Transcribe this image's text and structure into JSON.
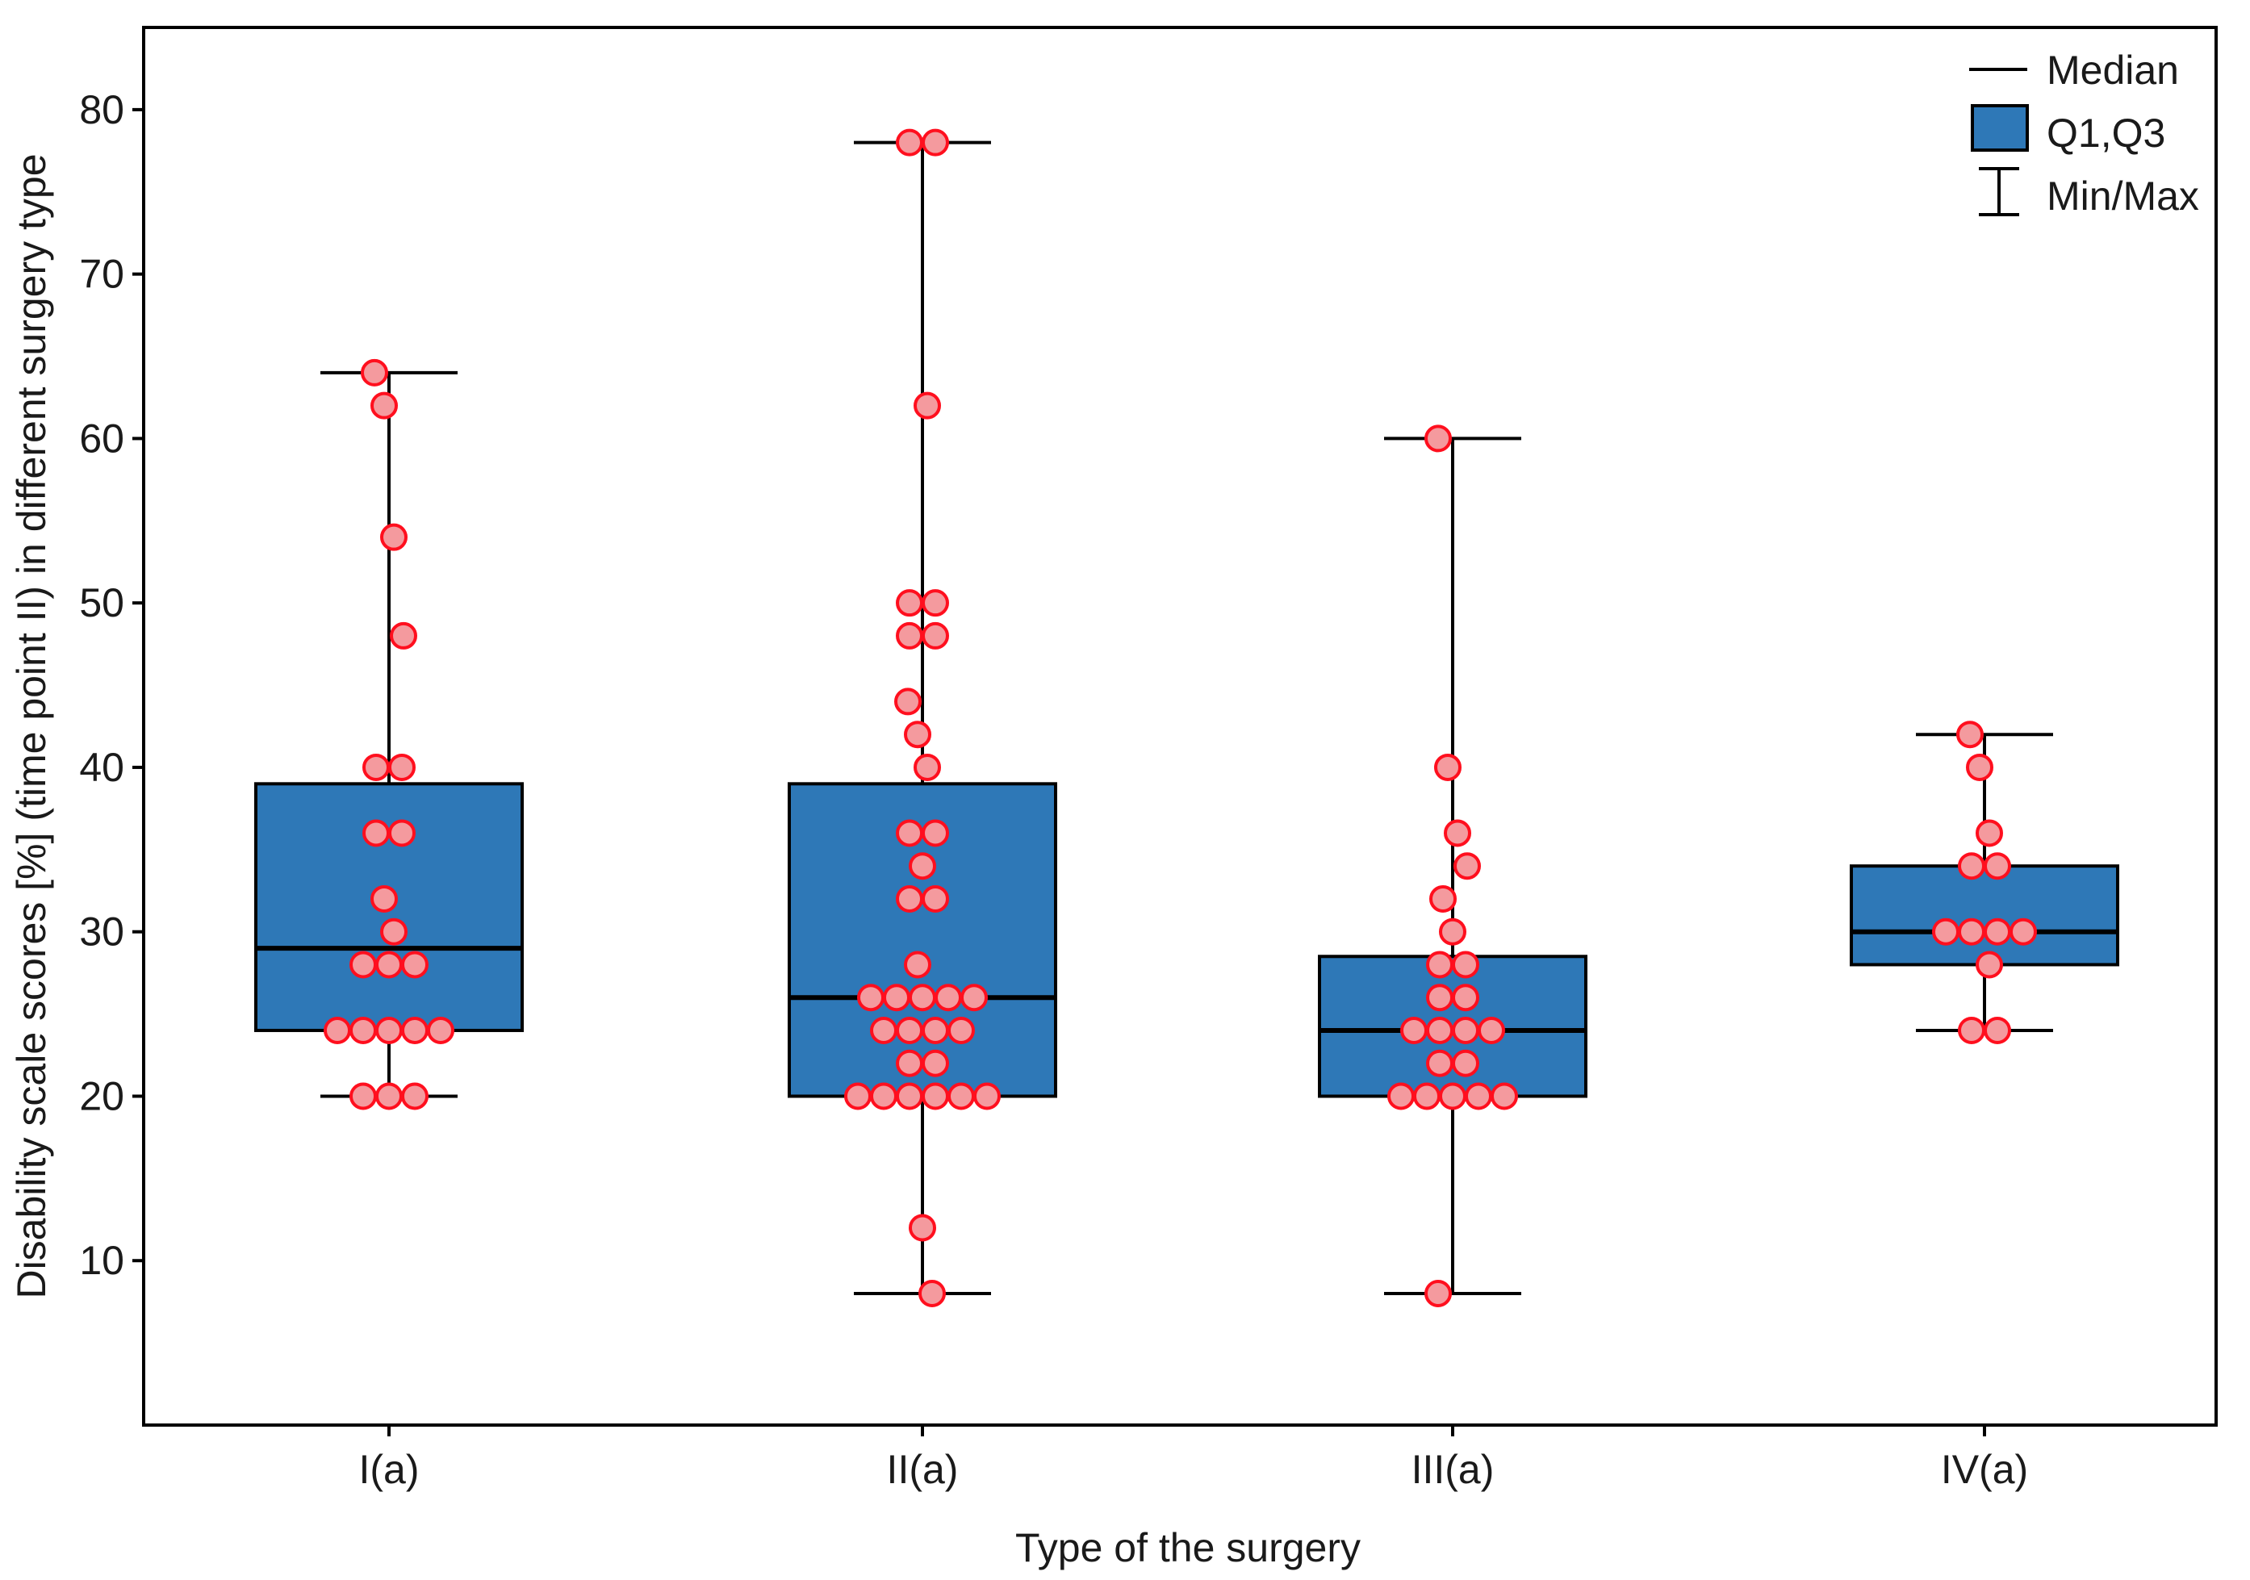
{
  "chart_data": {
    "type": "box",
    "xlabel": "Type of the surgery",
    "ylabel": "Disability scale scores [%] (time point II) in different surgery type",
    "ylim": [
      0,
      85
    ],
    "yticks": [
      10,
      20,
      30,
      40,
      50,
      60,
      70,
      80
    ],
    "categories": [
      "I(a)",
      "II(a)",
      "III(a)",
      "IV(a)"
    ],
    "legend": {
      "position": "top-right",
      "items": [
        "Median",
        "Q1,Q3",
        "Min/Max"
      ]
    },
    "colors": {
      "box_fill": "#2e78b7",
      "point_fill": "#f49a9e",
      "point_stroke": "#ff0f1e",
      "line": "#000000"
    },
    "boxes": [
      {
        "category": "I(a)",
        "min": 20,
        "q1": 24,
        "median": 29,
        "q3": 39,
        "max": 64
      },
      {
        "category": "II(a)",
        "min": 8,
        "q1": 20,
        "median": 26,
        "q3": 39,
        "max": 78
      },
      {
        "category": "III(a)",
        "min": 8,
        "q1": 20,
        "median": 24,
        "q3": 28.5,
        "max": 60
      },
      {
        "category": "IV(a)",
        "min": 24,
        "q1": 28,
        "median": 30,
        "q3": 34,
        "max": 42
      }
    ],
    "points": [
      {
        "category": "I(a)",
        "values": [
          64,
          62,
          54,
          48,
          40,
          40,
          36,
          36,
          32,
          30,
          28,
          28,
          28,
          24,
          24,
          24,
          24,
          24,
          20,
          20,
          20
        ]
      },
      {
        "category": "II(a)",
        "values": [
          78,
          78,
          62,
          50,
          50,
          48,
          48,
          44,
          42,
          40,
          36,
          36,
          34,
          32,
          32,
          28,
          26,
          26,
          26,
          26,
          26,
          24,
          24,
          24,
          24,
          22,
          22,
          20,
          20,
          20,
          20,
          20,
          20,
          12,
          8
        ]
      },
      {
        "category": "III(a)",
        "values": [
          60,
          40,
          36,
          34,
          32,
          30,
          28,
          28,
          26,
          26,
          24,
          24,
          24,
          24,
          22,
          22,
          20,
          20,
          20,
          20,
          20,
          8
        ]
      },
      {
        "category": "IV(a)",
        "values": [
          42,
          40,
          36,
          34,
          34,
          30,
          30,
          30,
          30,
          28,
          24,
          24
        ]
      }
    ]
  }
}
